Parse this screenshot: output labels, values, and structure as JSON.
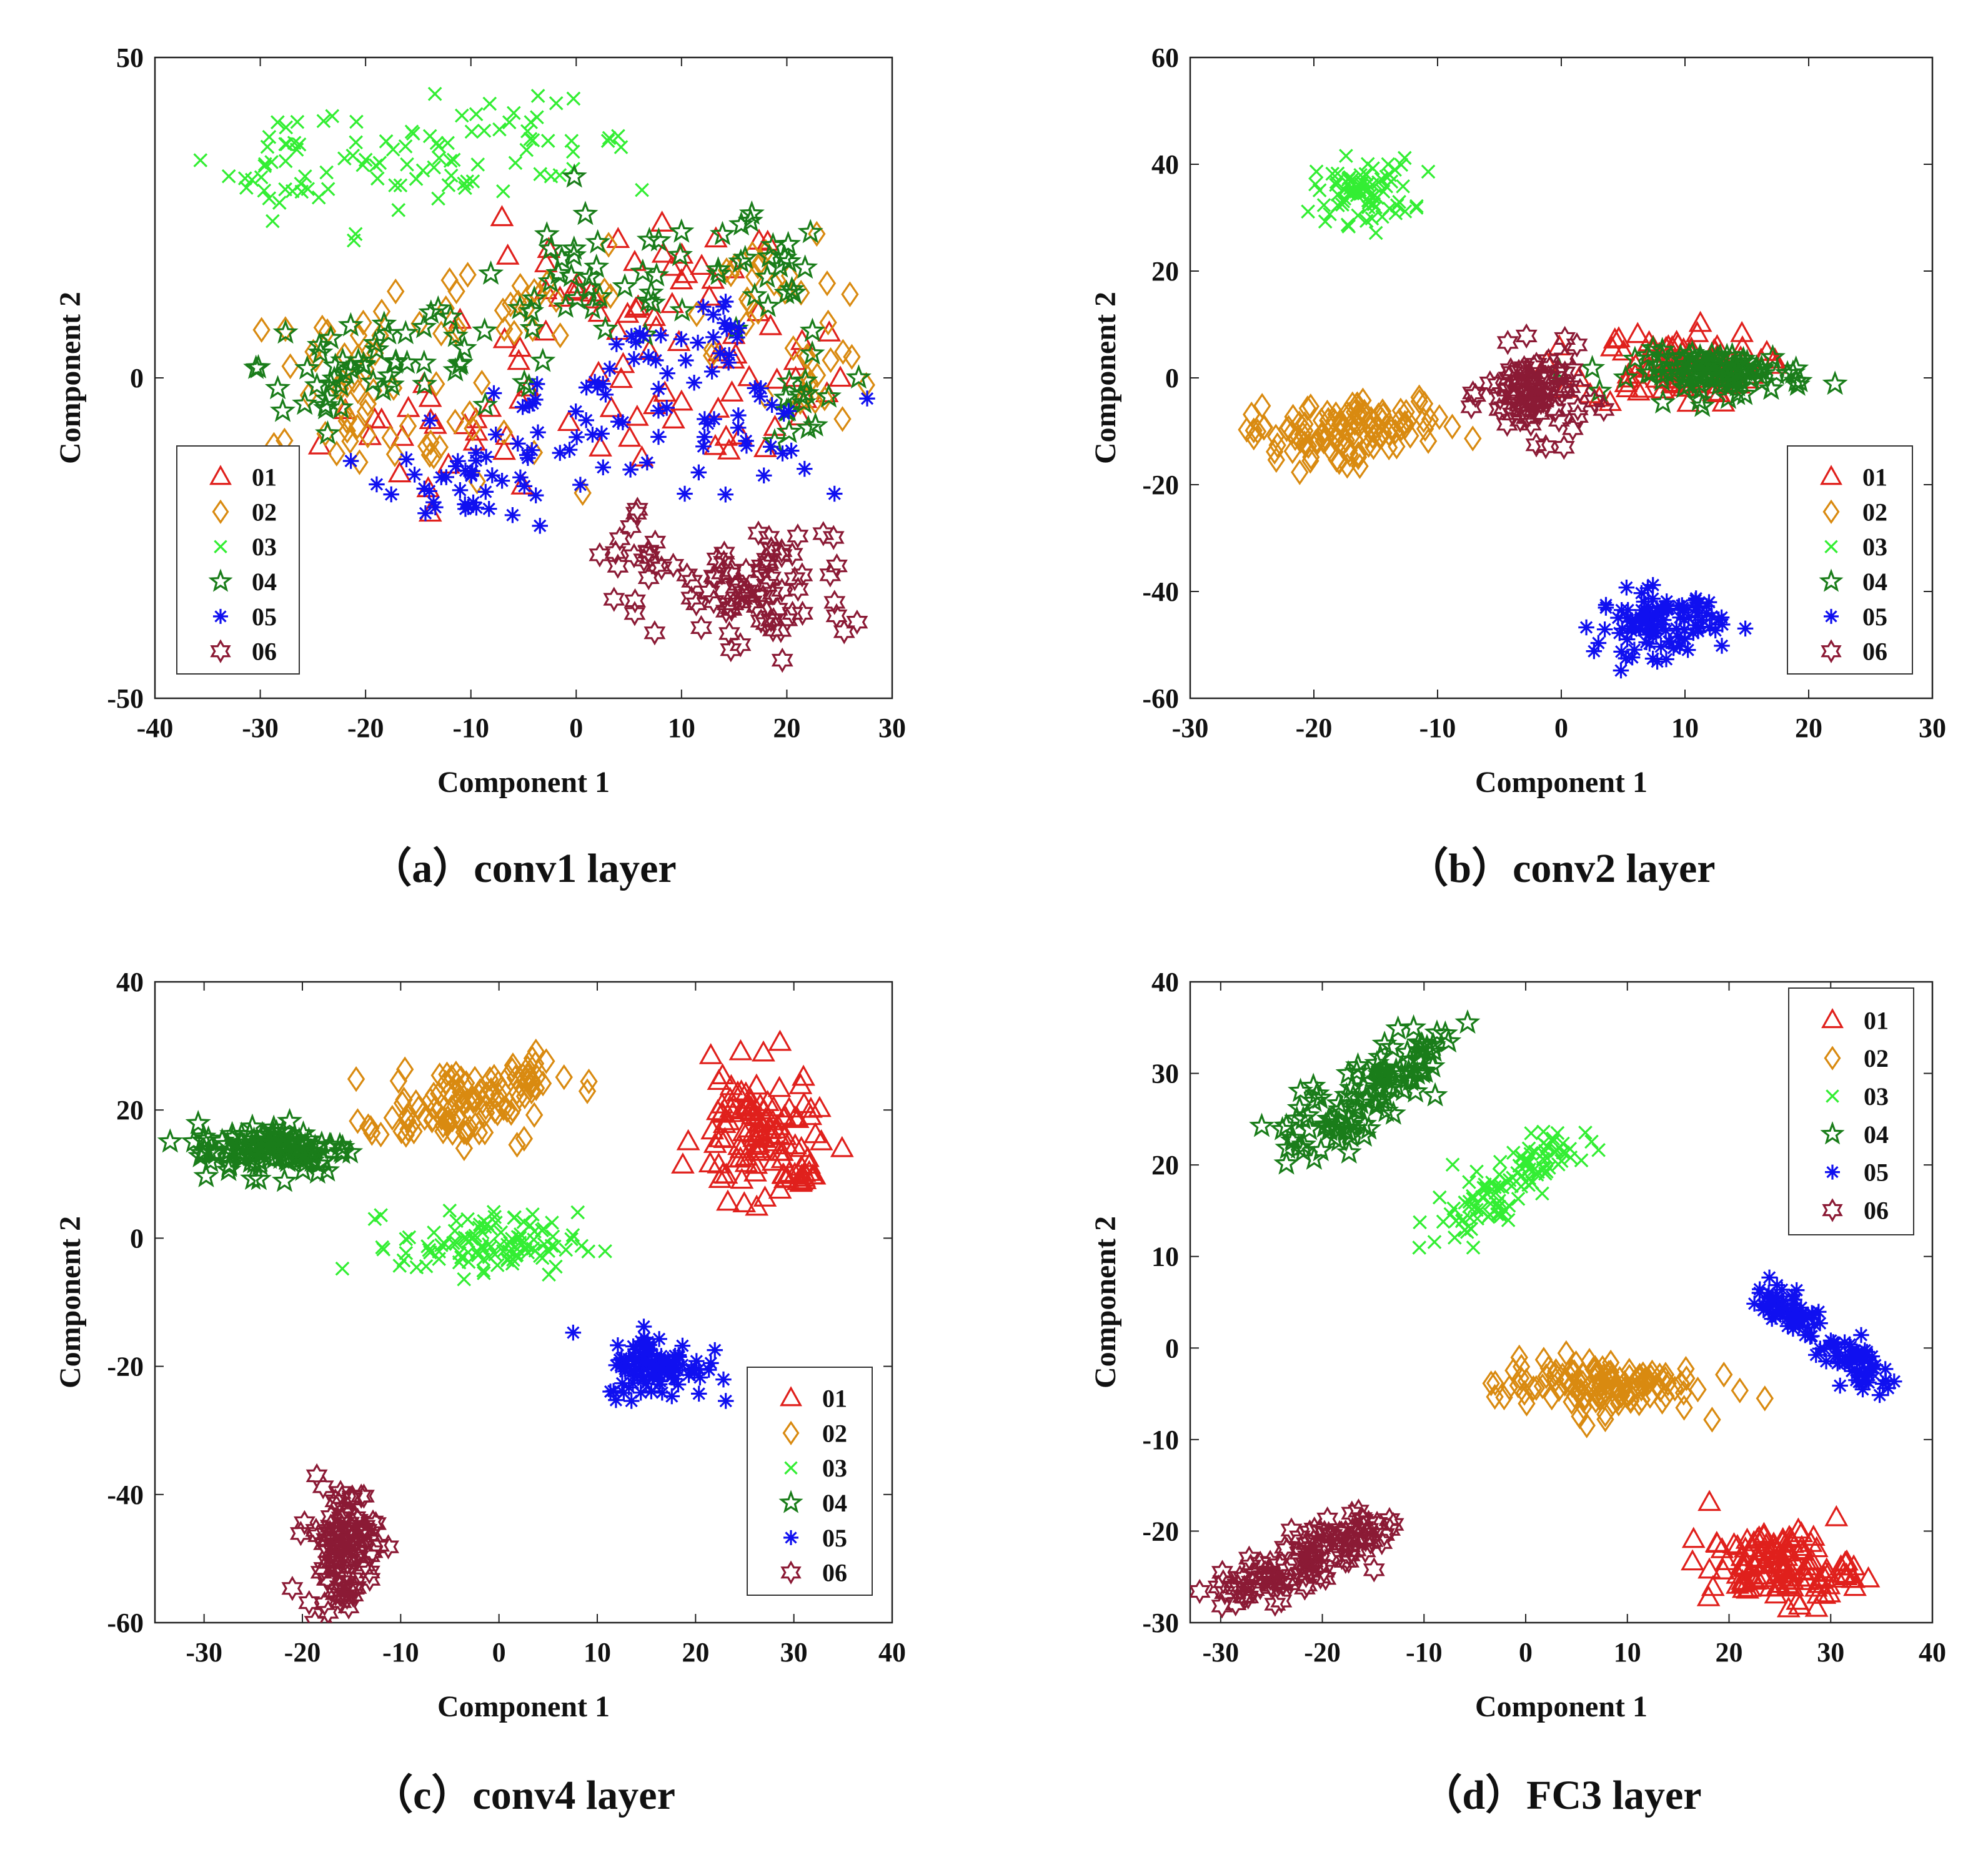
{
  "colors": {
    "01": "#e0201c",
    "02": "#d98a10",
    "03": "#33ee33",
    "04": "#1a7d1a",
    "05": "#1010f0",
    "06": "#8b1a35"
  },
  "markers": {
    "01": "triangle",
    "02": "diamond",
    "03": "x-cross",
    "04": "star",
    "05": "asterisk",
    "06": "hexagram"
  },
  "chart_data": [
    {
      "type": "scatter",
      "panel": "a",
      "caption": "（a）conv1 layer",
      "xlabel": "Component 1",
      "ylabel": "Component 2",
      "xlim": [
        -40,
        30
      ],
      "ylim": [
        -50,
        50
      ],
      "xticks": [
        -40,
        -30,
        -20,
        -10,
        0,
        10,
        20,
        30
      ],
      "yticks": [
        -50,
        0,
        50
      ],
      "legend_position": "bottom-left",
      "legend": [
        "01",
        "02",
        "03",
        "04",
        "05",
        "06"
      ],
      "series": [
        {
          "name": "01",
          "clusters": [
            {
              "x": -12,
              "y": -8,
              "sx": 6,
              "sy": 5,
              "n": 25
            },
            {
              "x": 10,
              "y": 14,
              "sx": 5,
              "sy": 5,
              "n": 25
            },
            {
              "x": 18,
              "y": -2,
              "sx": 4,
              "sy": 6,
              "n": 20
            },
            {
              "x": -2,
              "y": 10,
              "sx": 8,
              "sy": 6,
              "n": 20
            },
            {
              "x": 8,
              "y": -8,
              "sx": 5,
              "sy": 4,
              "n": 15
            }
          ]
        },
        {
          "name": "02",
          "clusters": [
            {
              "x": -23,
              "y": 0,
              "sx": 3,
              "sy": 7,
              "n": 35
            },
            {
              "x": -5,
              "y": 12,
              "sx": 7,
              "sy": 4,
              "n": 25
            },
            {
              "x": 17,
              "y": 15,
              "sx": 4,
              "sy": 5,
              "n": 25
            },
            {
              "x": -13,
              "y": -10,
              "sx": 5,
              "sy": 4,
              "n": 20
            },
            {
              "x": 22,
              "y": 0,
              "sx": 2,
              "sy": 4,
              "n": 15
            }
          ]
        },
        {
          "name": "03",
          "clusters": [
            {
              "x": -27,
              "y": 33,
              "sx": 3,
              "sy": 4,
              "n": 35
            },
            {
              "x": -17,
              "y": 35,
              "sx": 4,
              "sy": 4,
              "n": 25
            },
            {
              "x": -5,
              "y": 37,
              "sx": 5,
              "sy": 3,
              "n": 35
            },
            {
              "x": -13,
              "y": 28,
              "sx": 4,
              "sy": 3,
              "n": 10
            }
          ]
        },
        {
          "name": "04",
          "clusters": [
            {
              "x": -22,
              "y": 2,
              "sx": 4,
              "sy": 6,
              "n": 35
            },
            {
              "x": 2,
              "y": 15,
              "sx": 5,
              "sy": 5,
              "n": 30
            },
            {
              "x": 18,
              "y": 15,
              "sx": 3,
              "sy": 5,
              "n": 25
            },
            {
              "x": -10,
              "y": 4,
              "sx": 6,
              "sy": 5,
              "n": 25
            },
            {
              "x": 22,
              "y": -4,
              "sx": 2,
              "sy": 6,
              "n": 15
            }
          ]
        },
        {
          "name": "05",
          "clusters": [
            {
              "x": -10,
              "y": -16,
              "sx": 4,
              "sy": 3,
              "n": 35
            },
            {
              "x": 0,
              "y": -7,
              "sx": 6,
              "sy": 4,
              "n": 35
            },
            {
              "x": 15,
              "y": -8,
              "sx": 4,
              "sy": 6,
              "n": 30
            },
            {
              "x": 6,
              "y": 5,
              "sx": 3,
              "sy": 3,
              "n": 15
            },
            {
              "x": 14,
              "y": 7,
              "sx": 1,
              "sy": 3,
              "n": 10
            }
          ]
        },
        {
          "name": "06",
          "clusters": [
            {
              "x": 16,
              "y": -35,
              "sx": 5,
              "sy": 5,
              "n": 60
            },
            {
              "x": 20,
              "y": -28,
              "sx": 3,
              "sy": 4,
              "n": 20
            },
            {
              "x": 6,
              "y": -28,
              "sx": 2,
              "sy": 4,
              "n": 15
            }
          ]
        }
      ]
    },
    {
      "type": "scatter",
      "panel": "b",
      "caption": "（b）conv2 layer",
      "xlabel": "Component 1",
      "ylabel": "Component 2",
      "xlim": [
        -30,
        30
      ],
      "ylim": [
        -60,
        60
      ],
      "xticks": [
        -30,
        -20,
        -10,
        0,
        10,
        20,
        30
      ],
      "yticks": [
        -60,
        -40,
        -20,
        0,
        20,
        40,
        60
      ],
      "legend_position": "bottom-right",
      "legend": [
        "01",
        "02",
        "03",
        "04",
        "05",
        "06"
      ],
      "series": [
        {
          "name": "01",
          "clusters": [
            {
              "x": 9,
              "y": 2,
              "sx": 3.5,
              "sy": 3.5,
              "n": 100
            }
          ]
        },
        {
          "name": "02",
          "clusters": [
            {
              "x": -20,
              "y": -11,
              "sx": 2.5,
              "sy": 3,
              "n": 70
            },
            {
              "x": -14,
              "y": -9,
              "sx": 3,
              "sy": 2.5,
              "n": 50
            }
          ]
        },
        {
          "name": "03",
          "clusters": [
            {
              "x": -16,
              "y": 35,
              "sx": 2,
              "sy": 3,
              "n": 80
            }
          ]
        },
        {
          "name": "04",
          "clusters": [
            {
              "x": 13,
              "y": 1,
              "sx": 3.5,
              "sy": 2,
              "n": 110
            }
          ]
        },
        {
          "name": "05",
          "clusters": [
            {
              "x": 8,
              "y": -46,
              "sx": 2.5,
              "sy": 3,
              "n": 110
            }
          ]
        },
        {
          "name": "06",
          "clusters": [
            {
              "x": -2,
              "y": -3,
              "sx": 2,
              "sy": 4,
              "n": 90
            }
          ]
        }
      ]
    },
    {
      "type": "scatter",
      "panel": "c",
      "caption": "（c）conv4 layer",
      "xlabel": "Component 1",
      "ylabel": "Component 2",
      "xlim": [
        -35,
        40
      ],
      "ylim": [
        -60,
        40
      ],
      "xticks": [
        -30,
        -20,
        -10,
        0,
        10,
        20,
        30,
        40
      ],
      "yticks": [
        -60,
        -40,
        -20,
        0,
        20,
        40
      ],
      "legend_position": "bottom-right",
      "legend": [
        "01",
        "02",
        "03",
        "04",
        "05",
        "06"
      ],
      "series": [
        {
          "name": "01",
          "clusters": [
            {
              "x": 26,
              "y": 16,
              "sx": 3,
              "sy": 5,
              "n": 110
            },
            {
              "x": 31,
              "y": 10,
              "sx": 1.5,
              "sy": 1,
              "n": 15
            }
          ]
        },
        {
          "name": "02",
          "clusters": [
            {
              "x": -4,
              "y": 21,
              "sx": 3.5,
              "sy": 3,
              "n": 80
            },
            {
              "x": 2,
              "y": 25,
              "sx": 2.5,
              "sy": 2,
              "n": 30
            },
            {
              "x": -12,
              "y": 17,
              "sx": 2,
              "sy": 1,
              "n": 10
            }
          ]
        },
        {
          "name": "03",
          "clusters": [
            {
              "x": -1,
              "y": -1,
              "sx": 4.5,
              "sy": 2.5,
              "n": 110
            }
          ]
        },
        {
          "name": "04",
          "clusters": [
            {
              "x": -23,
              "y": 14,
              "sx": 4,
              "sy": 2,
              "n": 120
            }
          ]
        },
        {
          "name": "05",
          "clusters": [
            {
              "x": 16,
              "y": -20,
              "sx": 2.5,
              "sy": 2.5,
              "n": 110
            }
          ]
        },
        {
          "name": "06",
          "clusters": [
            {
              "x": -16,
              "y": -48,
              "sx": 1.8,
              "sy": 5,
              "n": 110
            }
          ]
        }
      ]
    },
    {
      "type": "scatter",
      "panel": "d",
      "caption": "（d）FC3 layer",
      "xlabel": "Component 1",
      "ylabel": "Component 2",
      "xlim": [
        -33,
        40
      ],
      "ylim": [
        -30,
        40
      ],
      "xticks": [
        -30,
        -20,
        -10,
        0,
        10,
        20,
        30,
        40
      ],
      "yticks": [
        -30,
        -20,
        -10,
        0,
        10,
        20,
        30,
        40
      ],
      "legend_position": "top-right",
      "legend": [
        "01",
        "02",
        "03",
        "04",
        "05",
        "06"
      ],
      "series": [
        {
          "name": "01",
          "clusters": [
            {
              "x": 25,
              "y": -24,
              "sx": 3.5,
              "sy": 2,
              "n": 130
            }
          ]
        },
        {
          "name": "02",
          "clusters": [
            {
              "x": 7,
              "y": -4,
              "sx": 5,
              "sy": 1.5,
              "n": 130
            }
          ]
        },
        {
          "name": "03",
          "clusters": [
            {
              "x": -5,
              "y": 15,
              "sx": 3,
              "sy": 1.5,
              "n": 50,
              "tilt": 0.7
            },
            {
              "x": 1,
              "y": 20,
              "sx": 2.5,
              "sy": 1.3,
              "n": 60,
              "tilt": 0.7
            }
          ]
        },
        {
          "name": "04",
          "clusters": [
            {
              "x": -19,
              "y": 25,
              "sx": 3,
              "sy": 2,
              "n": 60,
              "tilt": 0.8
            },
            {
              "x": -12,
              "y": 31,
              "sx": 3,
              "sy": 1.5,
              "n": 60,
              "tilt": 0.8
            }
          ]
        },
        {
          "name": "05",
          "clusters": [
            {
              "x": 26,
              "y": 4,
              "sx": 2,
              "sy": 1,
              "n": 60,
              "tilt": -0.9
            },
            {
              "x": 32,
              "y": -1,
              "sx": 2,
              "sy": 1,
              "n": 60,
              "tilt": -0.9
            }
          ]
        },
        {
          "name": "06",
          "clusters": [
            {
              "x": -25,
              "y": -25,
              "sx": 3,
              "sy": 1.5,
              "n": 60,
              "tilt": 0.35
            },
            {
              "x": -18,
              "y": -21,
              "sx": 3,
              "sy": 1.3,
              "n": 60,
              "tilt": 0.35
            }
          ]
        }
      ]
    }
  ]
}
